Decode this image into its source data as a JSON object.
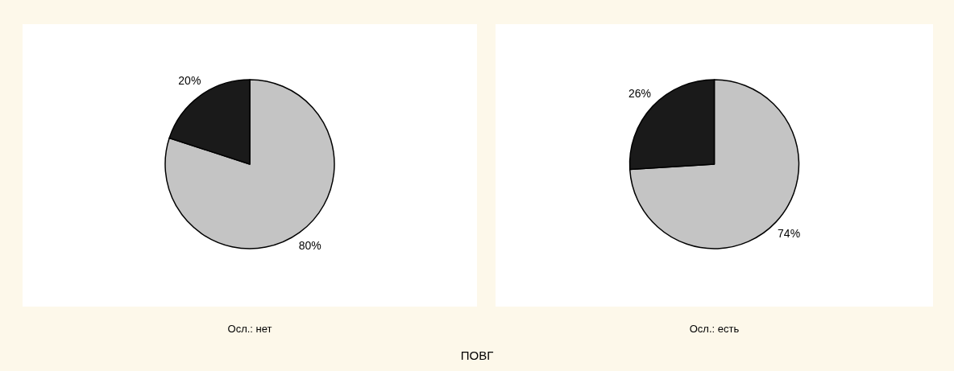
{
  "chart_data": [
    {
      "type": "pie",
      "title": "Осл.: нет",
      "categories": [
        null,
        null
      ],
      "values": [
        80,
        20
      ],
      "value_labels": [
        "80%",
        "20%"
      ],
      "colors": [
        "#c4c4c4",
        "#1a1a1a"
      ]
    },
    {
      "type": "pie",
      "title": "Осл.: есть",
      "categories": [
        null,
        null
      ],
      "values": [
        74,
        26
      ],
      "value_labels": [
        "74%",
        "26%"
      ],
      "colors": [
        "#c4c4c4",
        "#1a1a1a"
      ],
      "annotations": [
        "ПОВГ"
      ]
    }
  ]
}
